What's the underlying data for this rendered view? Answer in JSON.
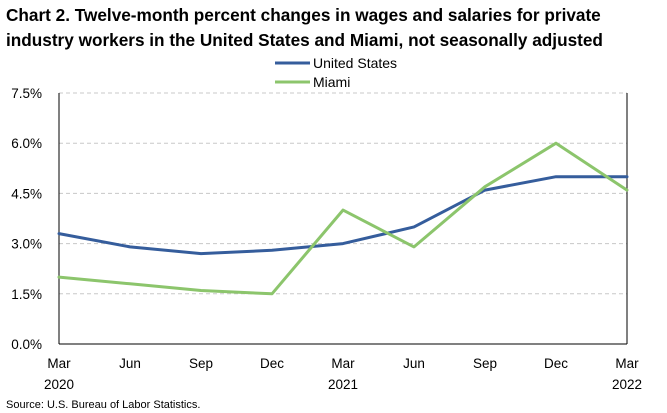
{
  "title_line1": "Chart 2. Twelve-month percent changes in wages and salaries for private",
  "title_line2": "industry workers in the United States and Miami, not seasonally adjusted",
  "source": "Source: U.S. Bureau of Labor Statistics.",
  "chart_data": {
    "type": "line",
    "title": "Chart 2. Twelve-month percent changes in wages and salaries for private industry workers in the United States and Miami, not seasonally adjusted",
    "xlabel": "",
    "ylabel": "",
    "categories": [
      "Mar 2020",
      "Jun",
      "Sep",
      "Dec",
      "Mar 2021",
      "Jun",
      "Sep",
      "Dec",
      "Mar 2022"
    ],
    "x_tick_lines": [
      [
        "Mar",
        "2020"
      ],
      [
        "Jun",
        ""
      ],
      [
        "Sep",
        ""
      ],
      [
        "Dec",
        ""
      ],
      [
        "Mar",
        "2021"
      ],
      [
        "Jun",
        ""
      ],
      [
        "Sep",
        ""
      ],
      [
        "Dec",
        ""
      ],
      [
        "Mar",
        "2022"
      ]
    ],
    "yticks": [
      "0.0%",
      "1.5%",
      "3.0%",
      "4.5%",
      "6.0%",
      "7.5%"
    ],
    "ylim": [
      0,
      7.5
    ],
    "grid": true,
    "legend_position": "top-center",
    "series": [
      {
        "name": "United States",
        "color": "#355D9C",
        "values": [
          3.3,
          2.9,
          2.7,
          2.8,
          3.0,
          3.5,
          4.6,
          5.0,
          5.0
        ]
      },
      {
        "name": "Miami",
        "color": "#8CC56C",
        "values": [
          2.0,
          1.8,
          1.6,
          1.5,
          4.0,
          2.9,
          4.7,
          6.0,
          4.6
        ]
      }
    ]
  }
}
